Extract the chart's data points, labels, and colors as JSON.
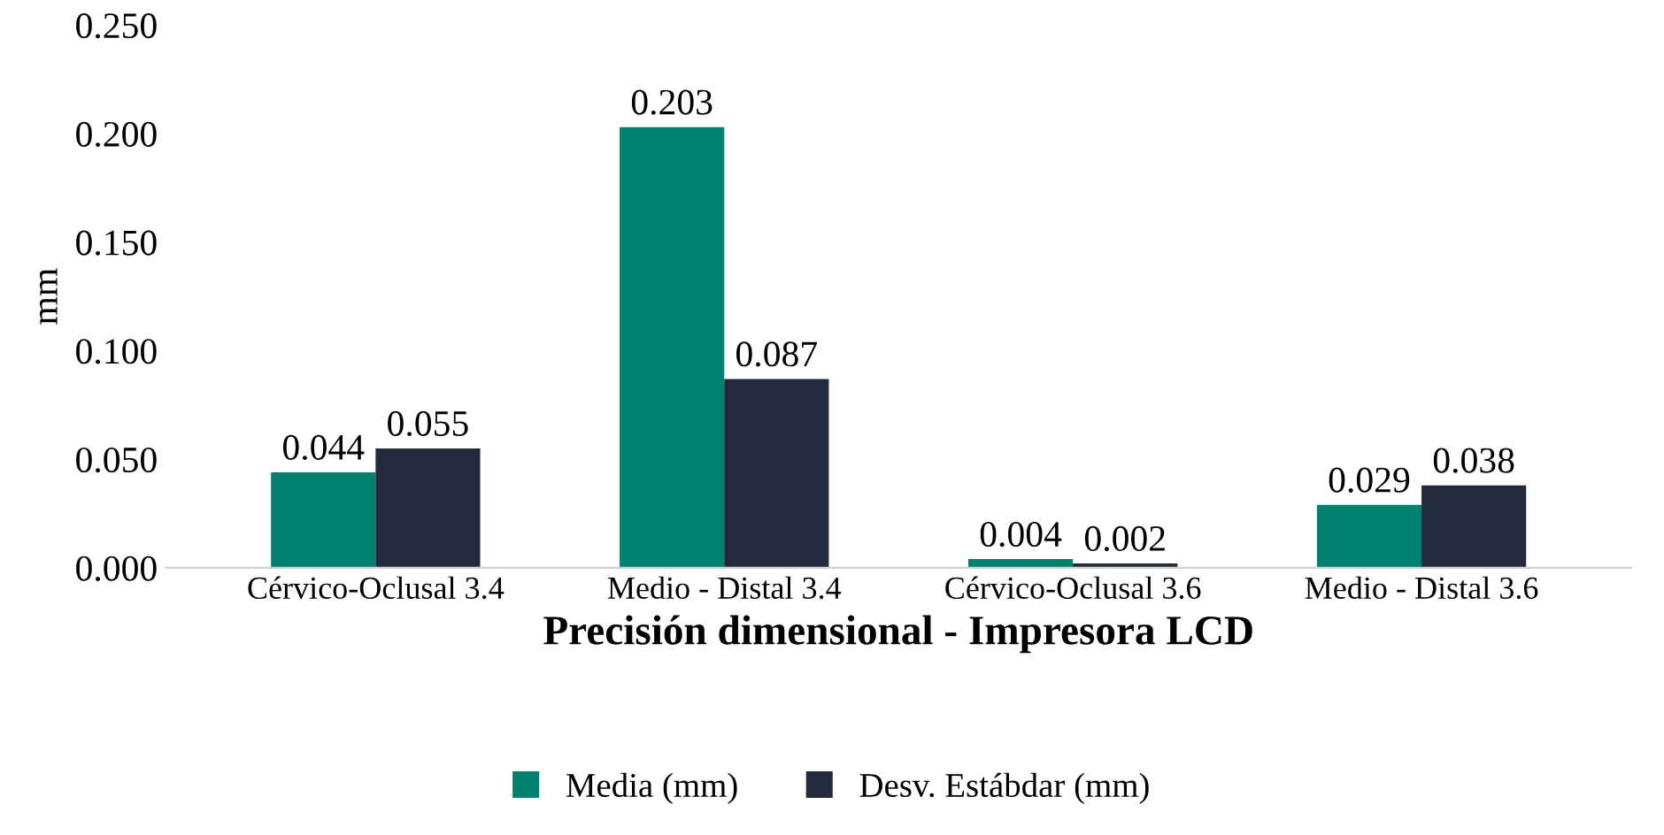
{
  "chart_data": {
    "type": "bar",
    "xlabel": "Precisión dimensional - Impresora LCD",
    "ylabel": "mm",
    "categories": [
      "Cérvico-Oclusal 3.4",
      "Medio - Distal 3.4",
      "Cérvico-Oclusal 3.6",
      "Medio - Distal 3.6"
    ],
    "series": [
      {
        "name": "Media (mm)",
        "color": "#00806f",
        "values": [
          0.044,
          0.203,
          0.004,
          0.029
        ]
      },
      {
        "name": "Desv. Estábdar (mm)",
        "color": "#232a3b",
        "values": [
          0.055,
          0.087,
          0.002,
          0.038
        ]
      }
    ],
    "ylim": [
      0,
      0.25
    ],
    "yticks": [
      {
        "value": 0,
        "label": "0.000"
      },
      {
        "value": 0.05,
        "label": "0.050"
      },
      {
        "value": 0.1,
        "label": "0.100"
      },
      {
        "value": 0.15,
        "label": "0.150"
      },
      {
        "value": 0.2,
        "label": "0.200"
      },
      {
        "value": 0.25,
        "label": "0.250"
      }
    ],
    "data_labels": true,
    "grid": false,
    "legend": "bottom"
  }
}
